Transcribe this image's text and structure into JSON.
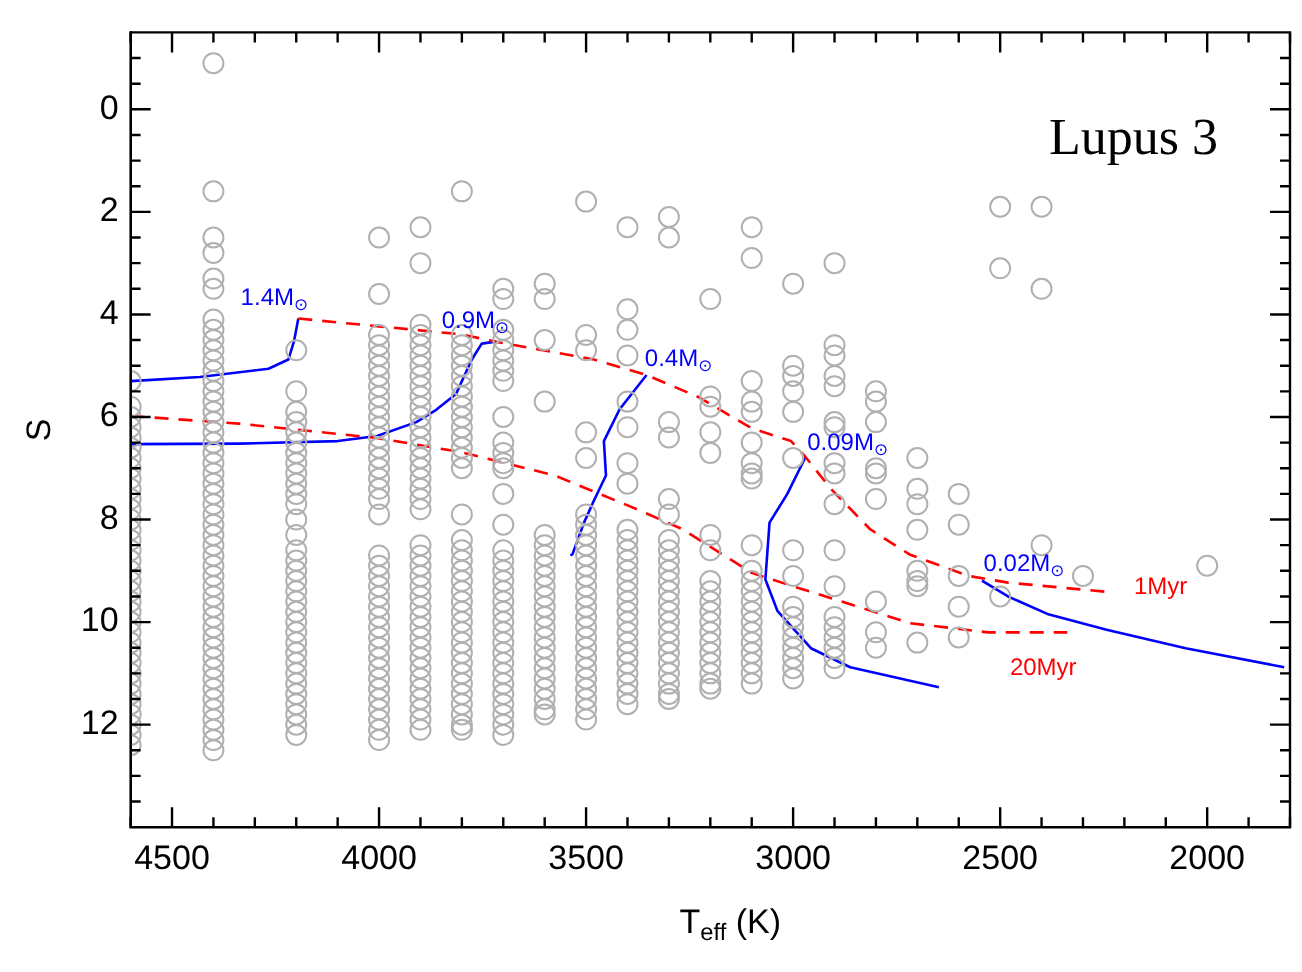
{
  "chart_data": {
    "type": "scatter",
    "title": "Lupus 3",
    "xlabel": "T$_{eff}$ (K)",
    "ylabel": "S",
    "xlim": [
      4600,
      1800
    ],
    "ylim": [
      14,
      -1.5
    ],
    "grid": false,
    "legend": false,
    "marker": "circle",
    "xticks": [
      {
        "value": 4600,
        "label": null
      },
      4500,
      {
        "value": 4400,
        "label": null
      },
      {
        "value": 4300,
        "label": null
      },
      {
        "value": 4200,
        "label": null
      },
      {
        "value": 4100,
        "label": null
      },
      4000,
      {
        "value": 3900,
        "label": null
      },
      {
        "value": 3800,
        "label": null
      },
      {
        "value": 3700,
        "label": null
      },
      {
        "value": 3600,
        "label": null
      },
      3500,
      {
        "value": 3400,
        "label": null
      },
      {
        "value": 3300,
        "label": null
      },
      {
        "value": 3200,
        "label": null
      },
      {
        "value": 3100,
        "label": null
      },
      3000,
      {
        "value": 2900,
        "label": null
      },
      {
        "value": 2800,
        "label": null
      },
      {
        "value": 2700,
        "label": null
      },
      {
        "value": 2600,
        "label": null
      },
      2500,
      {
        "value": 2400,
        "label": null
      },
      {
        "value": 2300,
        "label": null
      },
      {
        "value": 2200,
        "label": null
      },
      {
        "value": 2100,
        "label": null
      },
      2000,
      {
        "value": 1900,
        "label": null
      },
      {
        "value": 1800,
        "label": null
      }
    ],
    "yticks": [
      {
        "value": -1,
        "label": null
      },
      {
        "value": -0.5,
        "label": null
      },
      0,
      {
        "value": 0.5,
        "label": null
      },
      {
        "value": 1,
        "label": null
      },
      {
        "value": 1.5,
        "label": null
      },
      2,
      {
        "value": 2.5,
        "label": null
      },
      {
        "value": 3,
        "label": null
      },
      {
        "value": 3.5,
        "label": null
      },
      4,
      {
        "value": 4.5,
        "label": null
      },
      {
        "value": 5,
        "label": null
      },
      {
        "value": 5.5,
        "label": null
      },
      6,
      {
        "value": 6.5,
        "label": null
      },
      {
        "value": 7,
        "label": null
      },
      {
        "value": 7.5,
        "label": null
      },
      8,
      {
        "value": 8.5,
        "label": null
      },
      {
        "value": 9,
        "label": null
      },
      {
        "value": 9.5,
        "label": null
      },
      10,
      {
        "value": 10.5,
        "label": null
      },
      {
        "value": 11,
        "label": null
      },
      {
        "value": 11.5,
        "label": null
      },
      12,
      {
        "value": 12.5,
        "label": null
      },
      {
        "value": 13,
        "label": null
      },
      {
        "value": 13.5,
        "label": null
      }
    ],
    "series": [
      {
        "color": "#b0b0b0",
        "x": [
          4600,
          4600,
          4600,
          4600,
          4600,
          4600,
          4600,
          4600,
          4600,
          4600,
          4600,
          4600,
          4600,
          4600,
          4600,
          4600,
          4600,
          4600,
          4600,
          4600,
          4600,
          4600,
          4600,
          4600,
          4600,
          4600,
          4600,
          4600,
          4600,
          4600,
          4600,
          4600,
          4600,
          4600,
          4600
        ],
        "values": [
          5.3,
          5.8,
          6.0,
          6.2,
          6.4,
          6.6,
          6.8,
          7.0,
          7.2,
          7.4,
          7.6,
          7.8,
          8.0,
          8.2,
          8.4,
          8.6,
          8.8,
          9.0,
          9.2,
          9.4,
          9.6,
          9.8,
          10.0,
          10.2,
          10.4,
          10.6,
          10.8,
          11.0,
          11.2,
          11.4,
          11.6,
          11.8,
          12.0,
          12.2,
          12.4
        ]
      },
      {
        "color": "#b0b0b0",
        "x": [
          4400,
          4400,
          4400,
          4400,
          4400,
          4400,
          4400,
          4400,
          4400,
          4400,
          4400,
          4400,
          4400,
          4400,
          4400,
          4400,
          4400,
          4400,
          4400,
          4400,
          4400,
          4400,
          4400,
          4400,
          4400,
          4400,
          4400,
          4400,
          4400,
          4400,
          4400,
          4400,
          4400,
          4400,
          4400,
          4400,
          4400,
          4400,
          4400,
          4400,
          4400,
          4400,
          4400,
          4400,
          4400,
          4400,
          4400,
          4400,
          4400
        ],
        "values": [
          -0.9,
          1.6,
          2.5,
          2.8,
          3.3,
          3.5,
          4.1,
          4.3,
          4.5,
          4.7,
          4.9,
          5.1,
          5.3,
          5.5,
          5.7,
          5.9,
          6.1,
          6.3,
          6.5,
          6.7,
          6.9,
          7.1,
          7.3,
          7.5,
          7.7,
          7.9,
          8.1,
          8.3,
          8.5,
          8.7,
          8.9,
          9.1,
          9.3,
          9.5,
          9.7,
          9.9,
          10.1,
          10.3,
          10.5,
          10.7,
          10.9,
          11.1,
          11.3,
          11.5,
          11.7,
          11.9,
          12.1,
          12.3,
          12.5
        ]
      },
      {
        "color": "#b0b0b0",
        "x": [
          4200,
          4200,
          4200,
          4200,
          4200,
          4200,
          4200,
          4200,
          4200,
          4200,
          4200,
          4200,
          4200,
          4200,
          4200,
          4200,
          4200,
          4200,
          4200,
          4200,
          4200,
          4200,
          4200,
          4200,
          4200,
          4200,
          4200,
          4200,
          4200,
          4200,
          4200,
          4200,
          4200
        ],
        "values": [
          4.7,
          5.5,
          5.9,
          6.1,
          6.3,
          6.5,
          6.7,
          6.9,
          7.1,
          7.3,
          7.5,
          7.7,
          8.0,
          8.3,
          8.6,
          8.8,
          9.0,
          9.2,
          9.4,
          9.6,
          9.8,
          10.0,
          10.2,
          10.4,
          10.6,
          10.8,
          11.0,
          11.2,
          11.4,
          11.6,
          11.8,
          12.0,
          12.2
        ]
      },
      {
        "color": "#b0b0b0",
        "x": [
          4000,
          4000,
          4000,
          4000,
          4000,
          4000,
          4000,
          4000,
          4000,
          4000,
          4000,
          4000,
          4000,
          4000,
          4000,
          4000,
          4000,
          4000,
          4000,
          4000,
          4000,
          4000,
          4000,
          4000,
          4000,
          4000,
          4000,
          4000,
          4000,
          4000,
          4000,
          4000,
          4000,
          4000,
          4000,
          4000,
          4000,
          4000,
          4000
        ],
        "values": [
          2.5,
          3.6,
          4.4,
          4.6,
          4.8,
          5.0,
          5.2,
          5.4,
          5.6,
          5.8,
          6.0,
          6.2,
          6.4,
          6.6,
          6.8,
          7.0,
          7.2,
          7.4,
          7.6,
          7.9,
          8.7,
          8.9,
          9.1,
          9.3,
          9.5,
          9.7,
          9.9,
          10.1,
          10.3,
          10.5,
          10.7,
          10.9,
          11.1,
          11.3,
          11.5,
          11.7,
          11.9,
          12.1,
          12.3
        ]
      },
      {
        "color": "#b0b0b0",
        "x": [
          3900,
          3900,
          3900,
          3900,
          3900,
          3900,
          3900,
          3900,
          3900,
          3900,
          3900,
          3900,
          3900,
          3900,
          3900,
          3900,
          3900,
          3900,
          3900,
          3900,
          3900,
          3900,
          3900,
          3900,
          3900,
          3900,
          3900,
          3900,
          3900,
          3900,
          3900,
          3900,
          3900,
          3900,
          3900,
          3900,
          3900,
          3900,
          3900,
          3900
        ],
        "values": [
          2.3,
          3.0,
          4.2,
          4.4,
          4.6,
          4.8,
          5.0,
          5.2,
          5.4,
          5.6,
          5.8,
          6.0,
          6.2,
          6.4,
          6.6,
          6.8,
          7.0,
          7.2,
          7.4,
          7.6,
          7.8,
          8.5,
          8.7,
          8.9,
          9.1,
          9.3,
          9.5,
          9.7,
          9.9,
          10.1,
          10.3,
          10.5,
          10.7,
          10.9,
          11.1,
          11.3,
          11.5,
          11.7,
          11.9,
          12.1
        ]
      },
      {
        "color": "#b0b0b0",
        "x": [
          3800,
          3800,
          3800,
          3800,
          3800,
          3800,
          3800,
          3800,
          3800,
          3800,
          3800,
          3800,
          3800,
          3800,
          3800,
          3800,
          3800,
          3800,
          3800,
          3800,
          3800,
          3800,
          3800,
          3800,
          3800,
          3800,
          3800,
          3800,
          3800,
          3800,
          3800,
          3800,
          3800,
          3800,
          3800,
          3800
        ],
        "values": [
          1.6,
          4.4,
          4.6,
          4.8,
          5.0,
          5.2,
          5.4,
          5.6,
          5.8,
          6.0,
          6.2,
          6.4,
          6.6,
          6.8,
          7.0,
          7.9,
          8.4,
          8.6,
          8.8,
          9.0,
          9.2,
          9.4,
          9.6,
          9.8,
          10.0,
          10.2,
          10.4,
          10.6,
          10.8,
          11.0,
          11.2,
          11.4,
          11.6,
          11.8,
          12.0,
          12.1
        ]
      },
      {
        "color": "#b0b0b0",
        "x": [
          3700,
          3700,
          3700,
          3700,
          3700,
          3700,
          3700,
          3700,
          3700,
          3700,
          3700,
          3700,
          3700,
          3700,
          3700,
          3700,
          3700,
          3700,
          3700,
          3700,
          3700,
          3700,
          3700,
          3700,
          3700,
          3700,
          3700,
          3700,
          3700,
          3700,
          3700,
          3700,
          3700,
          3700
        ],
        "values": [
          3.5,
          3.7,
          4.3,
          4.5,
          4.7,
          4.9,
          5.1,
          5.3,
          6.0,
          6.5,
          6.7,
          6.9,
          7.0,
          7.5,
          8.1,
          8.6,
          8.8,
          9.0,
          9.2,
          9.4,
          9.6,
          9.8,
          10.0,
          10.2,
          10.4,
          10.6,
          10.8,
          11.0,
          11.2,
          11.4,
          11.6,
          11.8,
          12.0,
          12.2
        ]
      },
      {
        "color": "#b0b0b0",
        "x": [
          3600,
          3600,
          3600,
          3600,
          3600,
          3600,
          3600,
          3600,
          3600,
          3600,
          3600,
          3600,
          3600,
          3600,
          3600,
          3600,
          3600,
          3600,
          3600,
          3600,
          3600,
          3600,
          3600
        ],
        "values": [
          3.4,
          3.7,
          4.5,
          5.7,
          8.3,
          8.5,
          8.7,
          8.9,
          9.1,
          9.3,
          9.5,
          9.7,
          9.9,
          10.1,
          10.3,
          10.5,
          10.7,
          10.9,
          11.1,
          11.3,
          11.5,
          11.7,
          11.8
        ]
      },
      {
        "color": "#b0b0b0",
        "x": [
          3500,
          3500,
          3500,
          3500,
          3500,
          3500,
          3500,
          3500,
          3500,
          3500,
          3500,
          3500,
          3500,
          3500,
          3500,
          3500,
          3500,
          3500,
          3500,
          3500,
          3500,
          3500,
          3500,
          3500,
          3500,
          3500
        ],
        "values": [
          1.8,
          4.4,
          4.7,
          6.3,
          6.8,
          7.9,
          8.1,
          8.3,
          8.5,
          8.7,
          8.9,
          9.1,
          9.3,
          9.5,
          9.7,
          9.9,
          10.1,
          10.3,
          10.5,
          10.7,
          10.9,
          11.1,
          11.3,
          11.5,
          11.7,
          11.9
        ]
      },
      {
        "color": "#b0b0b0",
        "x": [
          3400,
          3400,
          3400,
          3400,
          3400,
          3400,
          3400,
          3400,
          3400,
          3400,
          3400,
          3400,
          3400,
          3400,
          3400,
          3400,
          3400,
          3400,
          3400,
          3400,
          3400,
          3400,
          3400,
          3400,
          3400,
          3400
        ],
        "values": [
          2.3,
          3.9,
          4.3,
          4.8,
          5.7,
          6.2,
          6.9,
          7.3,
          8.2,
          8.4,
          8.6,
          8.8,
          9.0,
          9.2,
          9.4,
          9.6,
          9.8,
          10.0,
          10.2,
          10.4,
          10.6,
          10.8,
          11.0,
          11.2,
          11.4,
          11.6
        ]
      },
      {
        "color": "#b0b0b0",
        "x": [
          3300,
          3300,
          3300,
          3300,
          3300,
          3300,
          3300,
          3300,
          3300,
          3300,
          3300,
          3300,
          3300,
          3300,
          3300,
          3300,
          3300,
          3300,
          3300,
          3300,
          3300,
          3300,
          3300
        ],
        "values": [
          2.1,
          2.5,
          6.1,
          6.4,
          7.6,
          7.9,
          8.4,
          8.6,
          8.8,
          9.0,
          9.2,
          9.4,
          9.6,
          9.8,
          10.0,
          10.2,
          10.4,
          10.6,
          10.8,
          11.0,
          11.2,
          11.4,
          11.5
        ]
      },
      {
        "color": "#b0b0b0",
        "x": [
          3200,
          3200,
          3200,
          3200,
          3200,
          3200,
          3200,
          3200,
          3200,
          3200,
          3200,
          3200,
          3200,
          3200,
          3200,
          3200,
          3200,
          3200,
          3200
        ],
        "values": [
          3.7,
          5.6,
          5.8,
          6.3,
          6.7,
          8.3,
          8.6,
          9.2,
          9.4,
          9.6,
          9.8,
          10.0,
          10.2,
          10.4,
          10.6,
          10.8,
          11.0,
          11.2,
          11.3
        ]
      },
      {
        "color": "#b0b0b0",
        "x": [
          3100,
          3100,
          3100,
          3100,
          3100,
          3100,
          3100,
          3100,
          3100,
          3100,
          3100,
          3100,
          3100,
          3100,
          3100,
          3100,
          3100,
          3100,
          3100,
          3100,
          3100,
          3100
        ],
        "values": [
          2.3,
          2.9,
          5.3,
          5.7,
          5.9,
          6.5,
          6.9,
          7.1,
          7.2,
          8.5,
          9.0,
          9.2,
          9.4,
          9.6,
          9.8,
          10.0,
          10.2,
          10.4,
          10.6,
          10.8,
          11.0,
          11.2
        ]
      },
      {
        "color": "#b0b0b0",
        "x": [
          3000,
          3000,
          3000,
          3000,
          3000,
          3000,
          3000,
          3000,
          3000,
          3000,
          3000,
          3000,
          3000,
          3000,
          3000,
          3000
        ],
        "values": [
          3.4,
          5.0,
          5.2,
          5.5,
          5.9,
          6.8,
          8.6,
          9.1,
          9.7,
          9.9,
          10.1,
          10.3,
          10.5,
          10.7,
          10.9,
          11.1
        ]
      },
      {
        "color": "#b0b0b0",
        "x": [
          2900,
          2900,
          2900,
          2900,
          2900,
          2900,
          2900,
          2900,
          2900,
          2900,
          2900,
          2900,
          2900,
          2900,
          2900,
          2900,
          2900,
          2900
        ],
        "values": [
          3.0,
          4.6,
          4.8,
          5.2,
          5.4,
          6.1,
          6.2,
          6.9,
          7.1,
          7.7,
          8.6,
          9.3,
          9.9,
          10.1,
          10.3,
          10.5,
          10.7,
          10.9
        ]
      },
      {
        "color": "#b0b0b0",
        "x": [
          2800,
          2800,
          2800,
          2800,
          2800,
          2800,
          2800,
          2800,
          2800
        ],
        "values": [
          5.5,
          5.7,
          6.1,
          7.0,
          7.1,
          7.6,
          9.6,
          10.2,
          10.5
        ]
      },
      {
        "color": "#b0b0b0",
        "x": [
          2700,
          2700,
          2700,
          2700,
          2700,
          2700,
          2700,
          2700
        ],
        "values": [
          6.8,
          7.4,
          7.7,
          8.2,
          9.0,
          9.2,
          9.3,
          10.4
        ]
      },
      {
        "color": "#b0b0b0",
        "x": [
          2600,
          2600,
          2600,
          2600,
          2600
        ],
        "values": [
          7.5,
          8.1,
          9.1,
          9.7,
          10.3
        ]
      },
      {
        "color": "#b0b0b0",
        "x": [
          2500,
          2500,
          2500,
          2400,
          2400,
          2400,
          2300,
          2000
        ],
        "values": [
          1.9,
          3.1,
          9.5,
          1.9,
          3.5,
          8.5,
          9.1,
          8.9
        ]
      },
      {
        "type": "line",
        "name": "1Myr",
        "color": "#ff0000",
        "line_style": "dashed",
        "marker": "none",
        "x": [
          4195,
          3800,
          3719,
          3481,
          3354,
          3229,
          3100,
          3005,
          2970,
          2910,
          2814,
          2719,
          2576,
          2481,
          2243
        ],
        "values": [
          4.08,
          4.39,
          4.53,
          4.88,
          5.18,
          5.61,
          6.22,
          6.47,
          6.78,
          7.39,
          8.19,
          8.68,
          9.1,
          9.23,
          9.41
        ]
      },
      {
        "type": "line",
        "name": "20Myr",
        "color": "#ff0000",
        "line_style": "dashed",
        "marker": "none",
        "x": [
          4600,
          4338,
          4005,
          3805,
          3576,
          3371,
          3267,
          3100,
          3005,
          2910,
          2719,
          2529,
          2338
        ],
        "values": [
          5.98,
          6.13,
          6.41,
          6.68,
          7.14,
          7.82,
          8.19,
          9.04,
          9.29,
          9.53,
          10.02,
          10.2,
          10.2
        ]
      },
      {
        "type": "line",
        "name": "1.4M$_{⊙}$",
        "color": "#0000ff",
        "line_style": "solid",
        "marker": "none",
        "x": [
          4600,
          4433,
          4267,
          4219,
          4205,
          4195
        ],
        "values": [
          5.3,
          5.22,
          5.06,
          4.88,
          4.51,
          4.08
        ]
      },
      {
        "type": "line",
        "name": "0.9M$_{⊙}$",
        "color": "#0000ff",
        "line_style": "solid",
        "marker": "none",
        "x": [
          4600,
          4338,
          4100,
          4005,
          3910,
          3862,
          3814,
          3776,
          3752,
          3719
        ],
        "values": [
          6.53,
          6.52,
          6.47,
          6.37,
          6.1,
          5.86,
          5.55,
          4.88,
          4.57,
          4.53
        ]
      },
      {
        "type": "line",
        "name": "0.4M$_{⊙}$",
        "color": "#0000ff",
        "line_style": "solid",
        "marker": "none",
        "x": [
          3538,
          3533,
          3505,
          3481,
          3452,
          3457,
          3419,
          3354
        ],
        "values": [
          8.7,
          8.68,
          8.06,
          7.63,
          7.14,
          6.47,
          5.85,
          5.18
        ]
      },
      {
        "type": "line",
        "name": "0.09M$_{⊙}$",
        "color": "#0000ff",
        "line_style": "solid",
        "marker": "none",
        "x": [
          2648,
          2862,
          2957,
          3038,
          3067,
          3057,
          3014,
          2970
        ],
        "values": [
          11.27,
          10.88,
          10.51,
          9.78,
          9.17,
          8.06,
          7.5,
          6.78
        ]
      },
      {
        "type": "line",
        "name": "0.02M$_{⊙}$",
        "color": "#0000ff",
        "line_style": "solid",
        "marker": "none",
        "x": [
          1814,
          2052,
          2243,
          2386,
          2481,
          2544
        ],
        "values": [
          10.88,
          10.51,
          10.15,
          9.84,
          9.5,
          9.19
        ]
      }
    ]
  }
}
